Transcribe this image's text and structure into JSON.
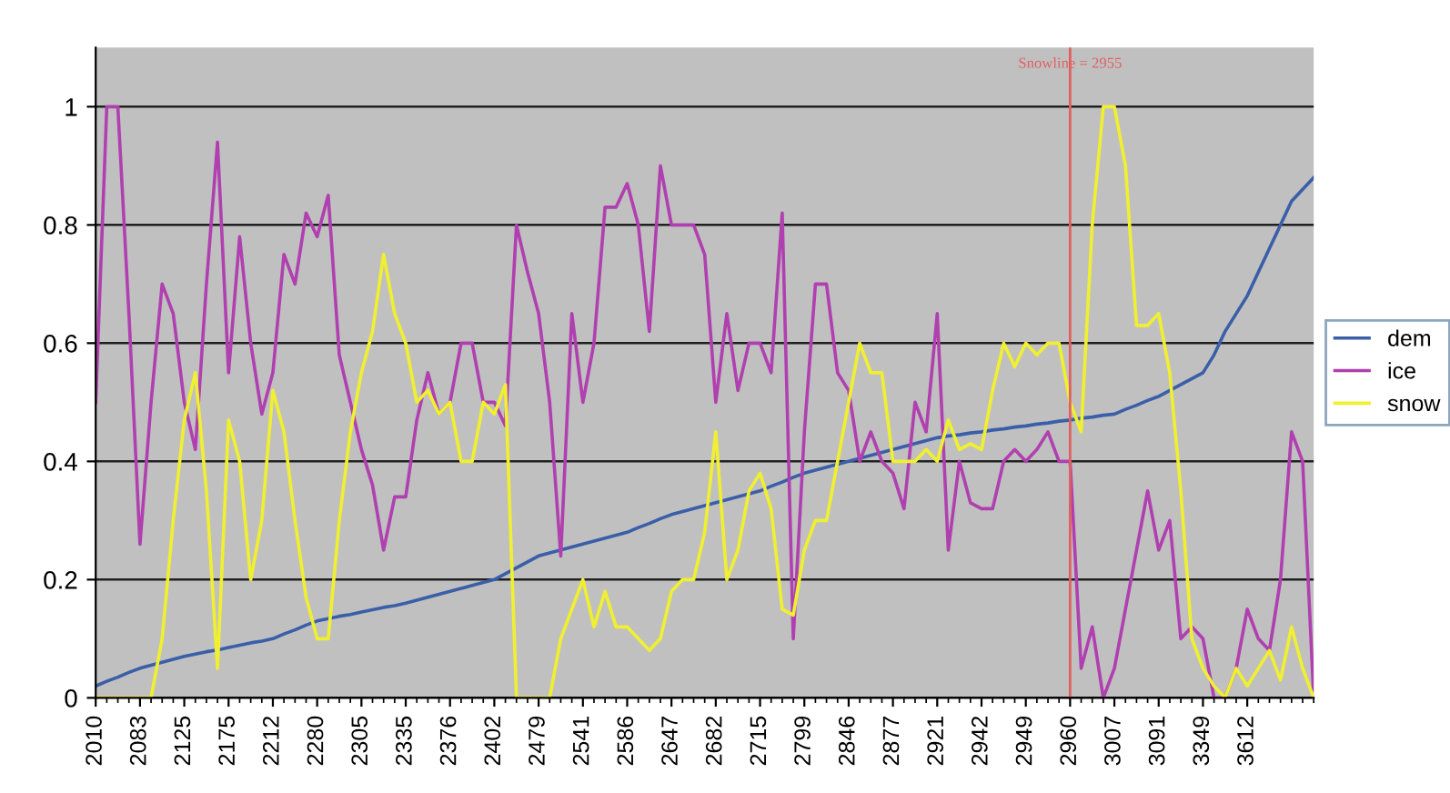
{
  "chart_data": {
    "type": "line",
    "categories": [
      "2010",
      null,
      null,
      null,
      "2083",
      null,
      null,
      null,
      "2125",
      null,
      null,
      null,
      "2175",
      null,
      null,
      null,
      "2212",
      null,
      null,
      null,
      "2280",
      null,
      null,
      null,
      "2305",
      null,
      null,
      null,
      "2335",
      null,
      null,
      null,
      "2376",
      null,
      null,
      null,
      "2402",
      null,
      null,
      null,
      "2479",
      null,
      null,
      null,
      "2541",
      null,
      null,
      null,
      "2586",
      null,
      null,
      null,
      "2647",
      null,
      null,
      null,
      "2682",
      null,
      null,
      null,
      "2715",
      null,
      null,
      null,
      "2799",
      null,
      null,
      null,
      "2846",
      null,
      null,
      null,
      "2877",
      null,
      null,
      null,
      "2921",
      null,
      null,
      null,
      "2942",
      null,
      null,
      null,
      "2949",
      null,
      null,
      null,
      "2960",
      null,
      null,
      null,
      "3007",
      null,
      null,
      null,
      "3091",
      null,
      null,
      null,
      "3349",
      null,
      null,
      null,
      "3612",
      null,
      null,
      null,
      null,
      null,
      null
    ],
    "series": [
      {
        "name": "dem",
        "color": "#3a5fa8",
        "values": [
          0.02,
          0.028,
          0.035,
          0.043,
          0.05,
          0.055,
          0.06,
          0.065,
          0.07,
          0.074,
          0.078,
          0.081,
          0.085,
          0.089,
          0.093,
          0.096,
          0.1,
          0.108,
          0.115,
          0.123,
          0.13,
          0.134,
          0.138,
          0.141,
          0.145,
          0.149,
          0.153,
          0.156,
          0.16,
          0.165,
          0.17,
          0.175,
          0.18,
          0.185,
          0.19,
          0.195,
          0.2,
          0.21,
          0.22,
          0.23,
          0.24,
          0.245,
          0.25,
          0.255,
          0.26,
          0.265,
          0.27,
          0.275,
          0.28,
          0.288,
          0.295,
          0.303,
          0.31,
          0.315,
          0.32,
          0.325,
          0.33,
          0.335,
          0.34,
          0.345,
          0.35,
          0.358,
          0.365,
          0.373,
          0.38,
          0.385,
          0.39,
          0.395,
          0.4,
          0.405,
          0.41,
          0.415,
          0.42,
          0.425,
          0.43,
          0.435,
          0.44,
          0.443,
          0.445,
          0.448,
          0.45,
          0.453,
          0.455,
          0.458,
          0.46,
          0.463,
          0.465,
          0.468,
          0.47,
          0.473,
          0.475,
          0.478,
          0.48,
          0.488,
          0.495,
          0.503,
          0.51,
          0.52,
          0.53,
          0.54,
          0.55,
          0.58,
          0.62,
          0.65,
          0.68,
          0.72,
          0.76,
          0.8,
          0.84,
          0.86,
          0.88
        ]
      },
      {
        "name": "ice",
        "color": "#b040b0",
        "values": [
          0.5,
          1.0,
          1.0,
          0.65,
          0.26,
          0.5,
          0.7,
          0.65,
          0.5,
          0.42,
          0.7,
          0.94,
          0.55,
          0.78,
          0.6,
          0.48,
          0.55,
          0.75,
          0.7,
          0.82,
          0.78,
          0.85,
          0.58,
          0.5,
          0.42,
          0.36,
          0.25,
          0.34,
          0.34,
          0.47,
          0.55,
          0.48,
          0.5,
          0.6,
          0.6,
          0.5,
          0.5,
          0.46,
          0.8,
          0.72,
          0.65,
          0.5,
          0.24,
          0.65,
          0.5,
          0.6,
          0.83,
          0.83,
          0.87,
          0.8,
          0.62,
          0.9,
          0.8,
          0.8,
          0.8,
          0.75,
          0.5,
          0.65,
          0.52,
          0.6,
          0.6,
          0.55,
          0.82,
          0.1,
          0.45,
          0.7,
          0.7,
          0.55,
          0.52,
          0.4,
          0.45,
          0.4,
          0.38,
          0.32,
          0.5,
          0.45,
          0.65,
          0.25,
          0.4,
          0.33,
          0.32,
          0.32,
          0.4,
          0.42,
          0.4,
          0.42,
          0.45,
          0.4,
          0.4,
          0.05,
          0.12,
          0.0,
          0.05,
          0.15,
          0.25,
          0.35,
          0.25,
          0.3,
          0.1,
          0.12,
          0.1,
          0.0,
          0.0,
          0.05,
          0.15,
          0.1,
          0.08,
          0.2,
          0.45,
          0.4,
          0.0
        ]
      },
      {
        "name": "snow",
        "color": "#f0f030",
        "values": [
          0,
          0,
          0,
          0,
          0,
          0,
          0.1,
          0.3,
          0.47,
          0.55,
          0.35,
          0.05,
          0.47,
          0.4,
          0.2,
          0.3,
          0.52,
          0.45,
          0.3,
          0.17,
          0.1,
          0.1,
          0.3,
          0.45,
          0.55,
          0.62,
          0.75,
          0.65,
          0.6,
          0.5,
          0.52,
          0.48,
          0.5,
          0.4,
          0.4,
          0.5,
          0.48,
          0.53,
          0.0,
          0.0,
          0.0,
          0.0,
          0.1,
          0.15,
          0.2,
          0.12,
          0.18,
          0.12,
          0.12,
          0.1,
          0.08,
          0.1,
          0.18,
          0.2,
          0.2,
          0.28,
          0.45,
          0.2,
          0.25,
          0.35,
          0.38,
          0.32,
          0.15,
          0.14,
          0.25,
          0.3,
          0.3,
          0.4,
          0.5,
          0.6,
          0.55,
          0.55,
          0.4,
          0.4,
          0.4,
          0.42,
          0.4,
          0.47,
          0.42,
          0.43,
          0.42,
          0.52,
          0.6,
          0.56,
          0.6,
          0.58,
          0.6,
          0.6,
          0.5,
          0.45,
          0.8,
          1.0,
          1.0,
          0.9,
          0.63,
          0.63,
          0.65,
          0.55,
          0.35,
          0.1,
          0.05,
          0.02,
          0.0,
          0.05,
          0.02,
          0.05,
          0.08,
          0.03,
          0.12,
          0.05,
          0.0
        ]
      }
    ],
    "ylim": [
      0,
      1.1
    ],
    "yticks": [
      0,
      0.2,
      0.4,
      0.6,
      0.8,
      1
    ],
    "ref_lines": [
      {
        "axis": "x",
        "value": "2960",
        "label": "Snowline = 2955",
        "color": "#e06060"
      }
    ],
    "grid": "y",
    "legend": "right",
    "marker": "none",
    "line_style": "solid"
  }
}
